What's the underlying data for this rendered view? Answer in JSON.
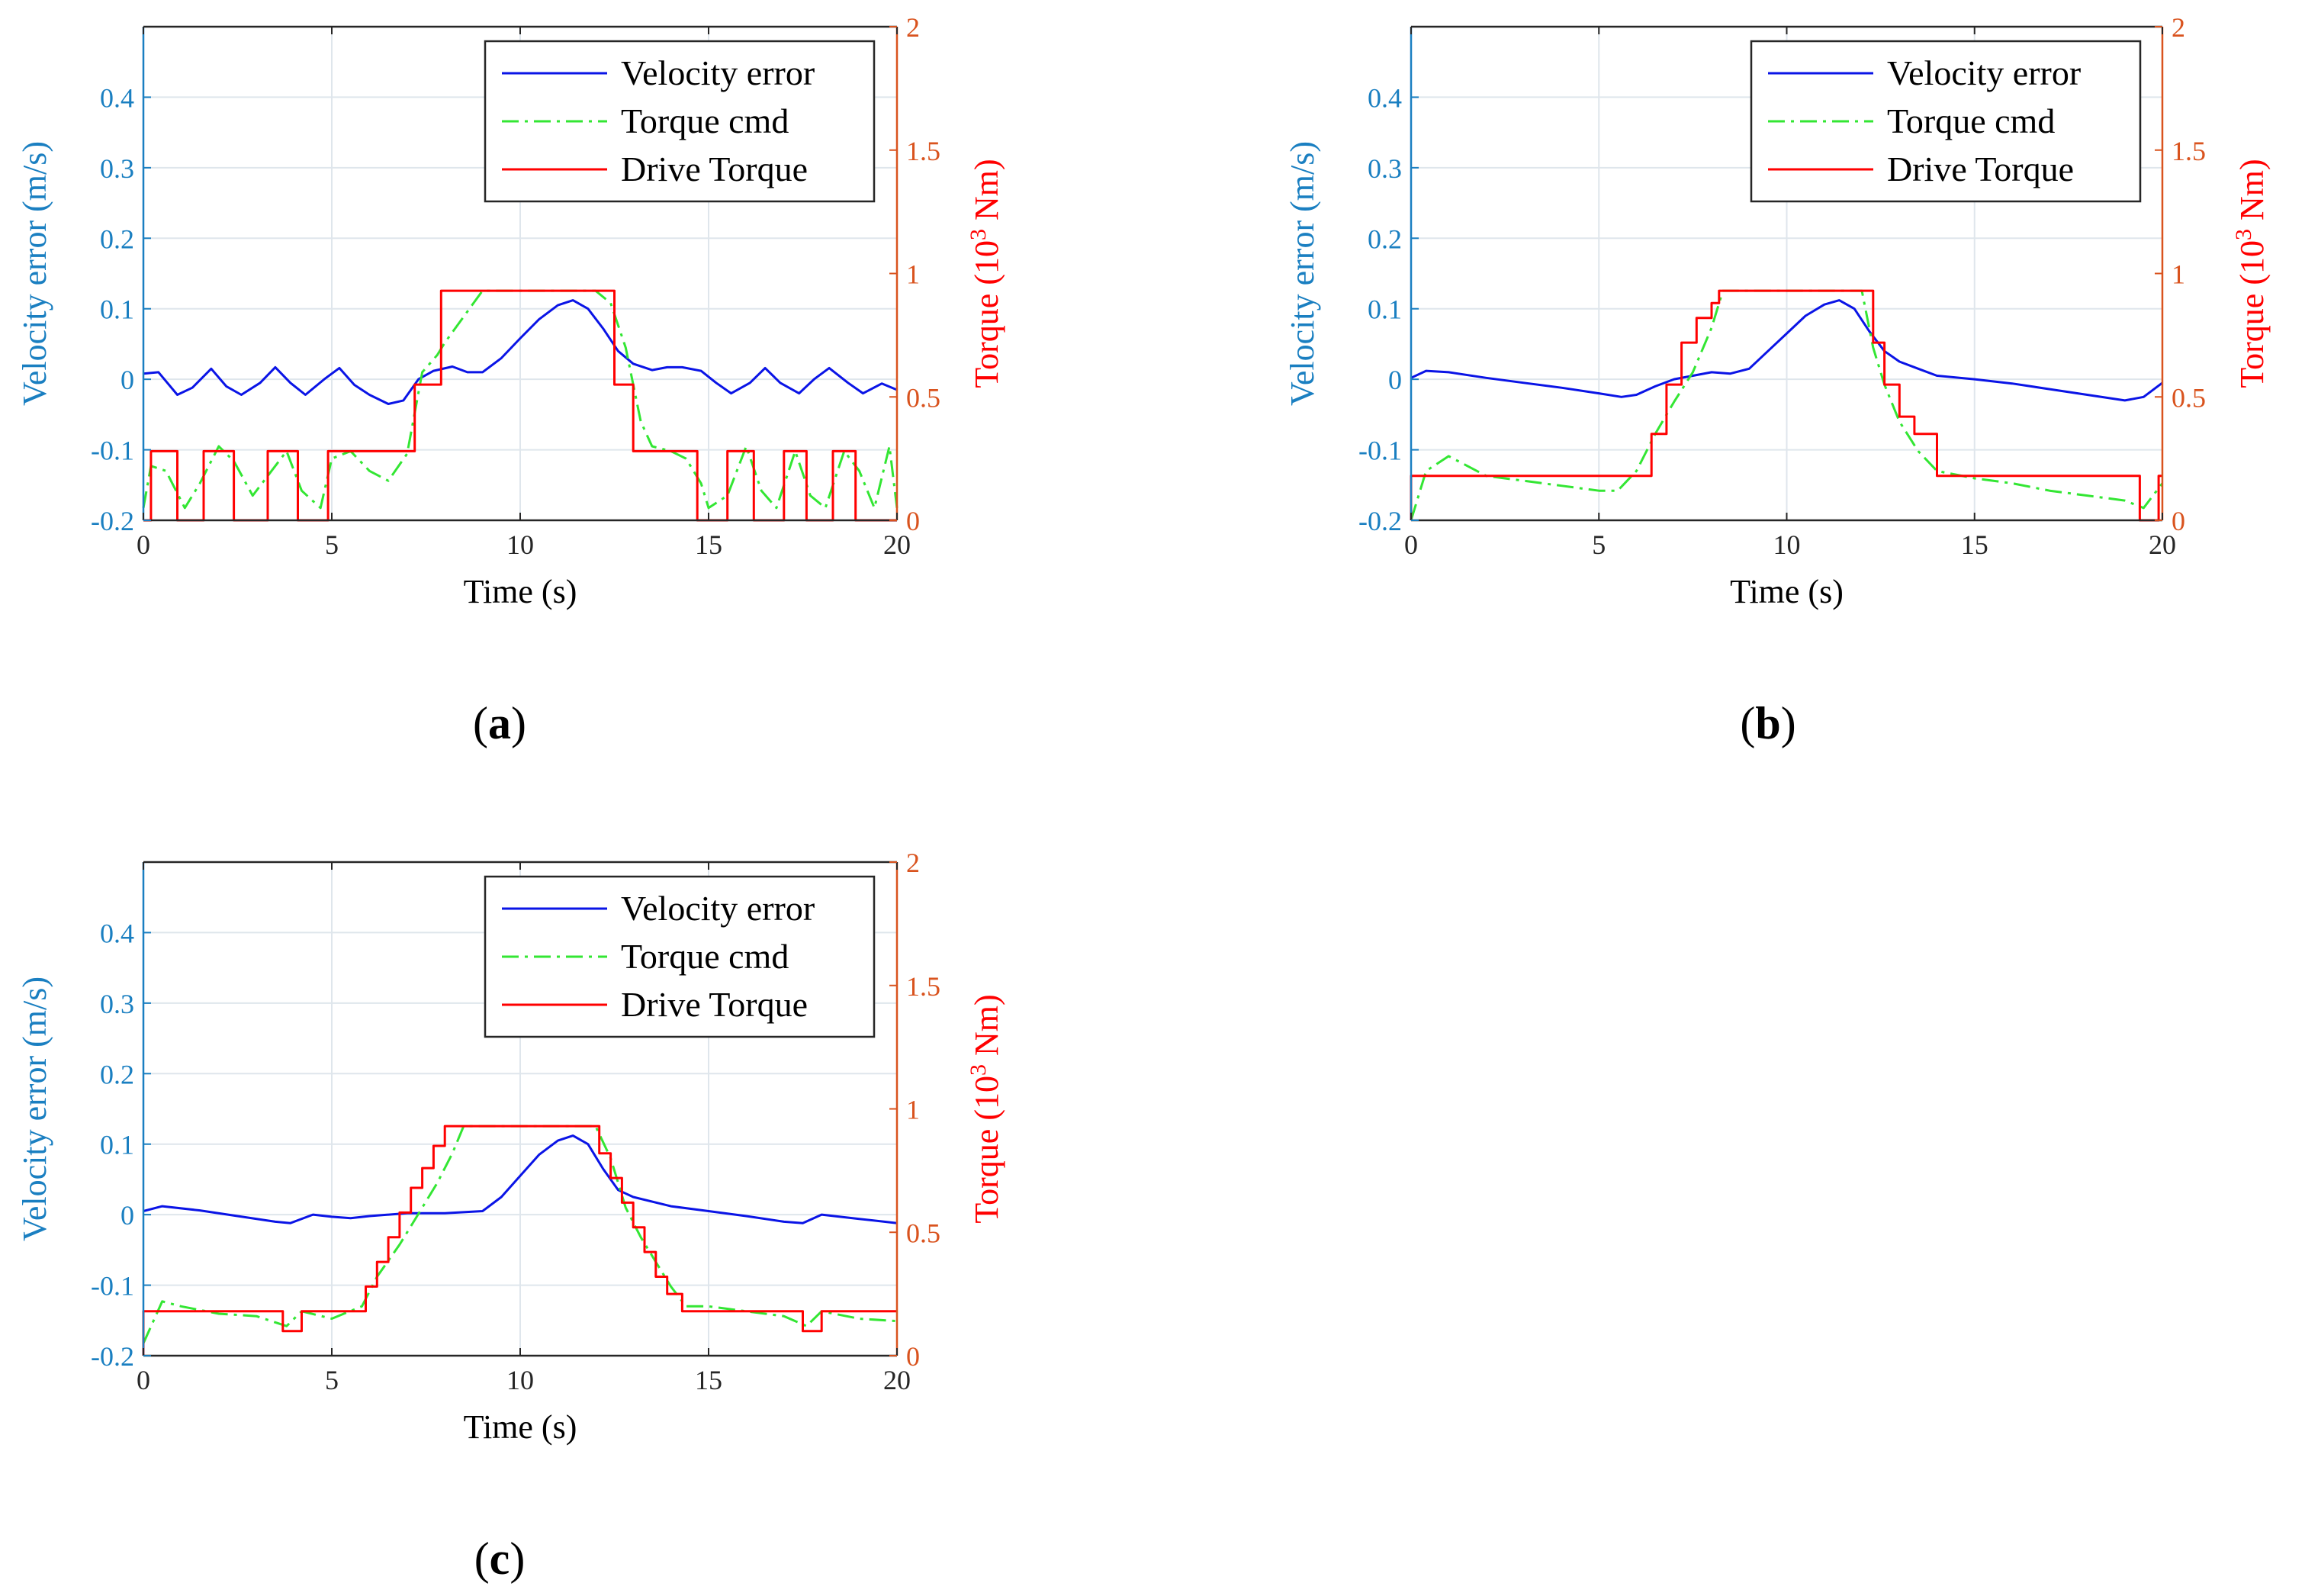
{
  "colors": {
    "left_axis": "#1a7fc1",
    "right_axis": "#d9531e",
    "velocity": "#0a14e6",
    "torque_cmd": "#33e633",
    "drive_torque": "#ff0000",
    "grid": "#dfe6ec"
  },
  "chart_data": [
    {
      "type": "line",
      "caption": "(a)",
      "caption_letter": "a",
      "xlabel": "Time (s)",
      "ylabel_left": "Velocity error (m/s)",
      "ylabel_right_prefix": "Torque (10",
      "ylabel_right_sup": "3",
      "ylabel_right_suffix": " Nm)",
      "xlim": [
        0,
        20
      ],
      "ylim_left": [
        -0.2,
        0.5
      ],
      "ylim_right": [
        0,
        2
      ],
      "x_ticks": [
        "0",
        "5",
        "10",
        "15",
        "20"
      ],
      "y_left_ticks": [
        "-0.2",
        "-0.1",
        "0",
        "0.1",
        "0.2",
        "0.3",
        "0.4"
      ],
      "y_right_ticks": [
        "0",
        "0.5",
        "1",
        "1.5",
        "2"
      ],
      "legend": [
        "Velocity error",
        "Torque cmd",
        "Drive Torque"
      ],
      "series": [
        {
          "name": "Velocity error",
          "x": [
            0,
            0.4,
            0.9,
            1.3,
            1.8,
            2.2,
            2.6,
            3.1,
            3.5,
            3.9,
            4.3,
            4.8,
            5.2,
            5.6,
            6.0,
            6.5,
            6.9,
            7.3,
            7.7,
            8.2,
            8.6,
            9.0,
            9.5,
            10.0,
            10.5,
            11.0,
            11.4,
            11.8,
            12.2,
            12.6,
            13.0,
            13.5,
            13.9,
            14.3,
            14.8,
            15.2,
            15.6,
            16.1,
            16.5,
            16.9,
            17.4,
            17.8,
            18.2,
            18.7,
            19.1,
            19.6,
            20
          ],
          "values": [
            0.008,
            0.01,
            -0.022,
            -0.012,
            0.015,
            -0.01,
            -0.022,
            -0.005,
            0.017,
            -0.005,
            -0.022,
            0.0,
            0.016,
            -0.008,
            -0.022,
            -0.035,
            -0.03,
            0.0,
            0.012,
            0.018,
            0.01,
            0.01,
            0.03,
            0.058,
            0.085,
            0.105,
            0.112,
            0.1,
            0.072,
            0.04,
            0.022,
            0.013,
            0.017,
            0.017,
            0.012,
            -0.005,
            -0.02,
            -0.005,
            0.016,
            -0.005,
            -0.02,
            0.0,
            0.016,
            -0.005,
            -0.02,
            -0.006,
            -0.015
          ]
        },
        {
          "name": "Torque cmd",
          "x": [
            0,
            0.2,
            0.6,
            1.1,
            1.5,
            2.0,
            2.4,
            2.9,
            3.3,
            3.8,
            4.2,
            4.7,
            5.0,
            5.5,
            6.0,
            6.5,
            7.0,
            7.4,
            7.8,
            8.0,
            9.0,
            10.0,
            11.0,
            12.0,
            12.4,
            12.8,
            13.2,
            13.5,
            14.0,
            14.4,
            14.8,
            15.0,
            15.5,
            16.0,
            16.4,
            16.8,
            17.3,
            17.7,
            18.1,
            18.6,
            19.0,
            19.4,
            19.8,
            20
          ],
          "values": [
            0.05,
            0.22,
            0.2,
            0.05,
            0.15,
            0.3,
            0.24,
            0.1,
            0.18,
            0.28,
            0.12,
            0.05,
            0.25,
            0.28,
            0.2,
            0.16,
            0.27,
            0.6,
            0.67,
            0.72,
            0.93,
            0.93,
            0.93,
            0.93,
            0.88,
            0.7,
            0.4,
            0.3,
            0.28,
            0.25,
            0.15,
            0.05,
            0.1,
            0.3,
            0.12,
            0.05,
            0.28,
            0.1,
            0.05,
            0.28,
            0.2,
            0.05,
            0.3,
            0.05
          ]
        },
        {
          "name": "Drive Torque",
          "x": [
            0,
            0.2,
            0.2,
            0.9,
            0.9,
            1.6,
            1.6,
            2.4,
            2.4,
            3.3,
            3.3,
            4.1,
            4.1,
            4.9,
            4.9,
            7.2,
            7.2,
            7.9,
            7.9,
            12.5,
            12.5,
            13.0,
            13.0,
            14.7,
            14.7,
            15.5,
            15.5,
            16.2,
            16.2,
            17.0,
            17.0,
            17.6,
            17.6,
            18.3,
            18.3,
            18.9,
            18.9,
            20.0
          ],
          "values": [
            0.0,
            0.0,
            0.28,
            0.28,
            0.0,
            0.0,
            0.28,
            0.28,
            0.0,
            0.0,
            0.28,
            0.28,
            0.0,
            0.0,
            0.28,
            0.28,
            0.55,
            0.55,
            0.93,
            0.93,
            0.55,
            0.55,
            0.28,
            0.28,
            0.0,
            0.0,
            0.28,
            0.28,
            0.0,
            0.0,
            0.28,
            0.28,
            0.0,
            0.0,
            0.28,
            0.28,
            0.0,
            0.0
          ]
        }
      ]
    },
    {
      "type": "line",
      "caption": "(b)",
      "caption_letter": "b",
      "xlabel": "Time (s)",
      "ylabel_left": "Velocity error (m/s)",
      "ylabel_right_prefix": "Torque (10",
      "ylabel_right_sup": "3",
      "ylabel_right_suffix": " Nm)",
      "xlim": [
        0,
        20
      ],
      "ylim_left": [
        -0.2,
        0.5
      ],
      "ylim_right": [
        0,
        2
      ],
      "x_ticks": [
        "0",
        "5",
        "10",
        "15",
        "20"
      ],
      "y_left_ticks": [
        "-0.2",
        "-0.1",
        "0",
        "0.1",
        "0.2",
        "0.3",
        "0.4"
      ],
      "y_right_ticks": [
        "0",
        "0.5",
        "1",
        "1.5",
        "2"
      ],
      "legend": [
        "Velocity error",
        "Torque cmd",
        "Drive Torque"
      ],
      "series": [
        {
          "name": "Velocity error",
          "x": [
            0,
            0.4,
            1.0,
            2.0,
            3.0,
            4.0,
            5.0,
            5.6,
            6.0,
            6.5,
            7.0,
            7.5,
            8.0,
            8.5,
            9.0,
            9.5,
            10.0,
            10.5,
            11.0,
            11.4,
            11.8,
            12.2,
            12.6,
            13.0,
            13.5,
            14.0,
            15.0,
            16.0,
            17.0,
            18.0,
            19.0,
            19.5,
            20
          ],
          "values": [
            0.002,
            0.012,
            0.01,
            0.002,
            -0.005,
            -0.012,
            -0.02,
            -0.025,
            -0.022,
            -0.01,
            0.0,
            0.005,
            0.01,
            0.008,
            0.015,
            0.04,
            0.065,
            0.09,
            0.106,
            0.112,
            0.1,
            0.068,
            0.04,
            0.025,
            0.015,
            0.005,
            0.0,
            -0.006,
            -0.014,
            -0.022,
            -0.03,
            -0.025,
            -0.005
          ]
        },
        {
          "name": "Torque cmd",
          "x": [
            0,
            0.4,
            1.0,
            2.0,
            3.0,
            4.0,
            5.0,
            5.5,
            6.0,
            6.5,
            7.0,
            7.5,
            8.0,
            8.3,
            9.0,
            10.0,
            11.0,
            12.0,
            12.3,
            12.6,
            13.0,
            13.5,
            14.0,
            15.0,
            16.0,
            17.0,
            18.0,
            19.0,
            19.5,
            20
          ],
          "values": [
            0.0,
            0.2,
            0.26,
            0.18,
            0.16,
            0.14,
            0.12,
            0.12,
            0.2,
            0.35,
            0.48,
            0.6,
            0.78,
            0.93,
            0.93,
            0.93,
            0.93,
            0.93,
            0.7,
            0.55,
            0.4,
            0.28,
            0.2,
            0.17,
            0.15,
            0.12,
            0.1,
            0.08,
            0.05,
            0.15
          ]
        },
        {
          "name": "Drive Torque",
          "x": [
            0,
            0.0,
            6.4,
            6.4,
            6.8,
            6.8,
            7.2,
            7.2,
            7.6,
            7.6,
            8.0,
            8.0,
            8.2,
            8.2,
            12.3,
            12.3,
            12.6,
            12.6,
            13.0,
            13.0,
            13.4,
            13.4,
            14.0,
            14.0,
            19.4,
            19.4,
            19.9,
            19.9,
            20.0
          ],
          "values": [
            0.0,
            0.18,
            0.18,
            0.35,
            0.35,
            0.55,
            0.55,
            0.72,
            0.72,
            0.82,
            0.82,
            0.88,
            0.88,
            0.93,
            0.93,
            0.72,
            0.72,
            0.55,
            0.55,
            0.42,
            0.42,
            0.35,
            0.35,
            0.18,
            0.18,
            0.0,
            0.0,
            0.18,
            0.18
          ]
        }
      ]
    },
    {
      "type": "line",
      "caption": "(c)",
      "caption_letter": "c",
      "xlabel": "Time (s)",
      "ylabel_left": "Velocity error (m/s)",
      "ylabel_right_prefix": "Torque (10",
      "ylabel_right_sup": "3",
      "ylabel_right_suffix": " Nm)",
      "xlim": [
        0,
        20
      ],
      "ylim_left": [
        -0.2,
        0.5
      ],
      "ylim_right": [
        0,
        2
      ],
      "x_ticks": [
        "0",
        "5",
        "10",
        "15",
        "20"
      ],
      "y_left_ticks": [
        "-0.2",
        "-0.1",
        "0",
        "0.1",
        "0.2",
        "0.3",
        "0.4"
      ],
      "y_right_ticks": [
        "0",
        "0.5",
        "1",
        "1.5",
        "2"
      ],
      "legend": [
        "Velocity error",
        "Torque cmd",
        "Drive Torque"
      ],
      "series": [
        {
          "name": "Velocity error",
          "x": [
            0,
            0.5,
            1.5,
            2.5,
            3.5,
            3.9,
            4.5,
            5.0,
            5.5,
            6.0,
            7.0,
            8.0,
            9.0,
            9.5,
            10.0,
            10.5,
            11.0,
            11.4,
            11.8,
            12.2,
            12.6,
            13.0,
            14.0,
            15.0,
            16.0,
            17.0,
            17.5,
            18.0,
            19.0,
            20
          ],
          "values": [
            0.005,
            0.012,
            0.006,
            -0.002,
            -0.01,
            -0.012,
            0.0,
            -0.003,
            -0.005,
            -0.002,
            0.002,
            0.002,
            0.005,
            0.025,
            0.055,
            0.085,
            0.105,
            0.112,
            0.1,
            0.065,
            0.035,
            0.025,
            0.012,
            0.005,
            -0.002,
            -0.01,
            -0.012,
            0.0,
            -0.006,
            -0.012
          ]
        },
        {
          "name": "Torque cmd",
          "x": [
            0,
            0.5,
            1.0,
            2.0,
            3.0,
            3.8,
            4.2,
            5.0,
            5.8,
            6.2,
            6.8,
            7.2,
            7.8,
            8.2,
            8.5,
            9.0,
            10.0,
            11.0,
            12.0,
            12.4,
            12.8,
            13.2,
            13.6,
            14.0,
            14.4,
            15.0,
            16.0,
            17.0,
            17.6,
            18.0,
            19.0,
            20
          ],
          "values": [
            0.05,
            0.22,
            0.2,
            0.17,
            0.16,
            0.12,
            0.18,
            0.15,
            0.2,
            0.32,
            0.45,
            0.55,
            0.7,
            0.82,
            0.93,
            0.93,
            0.93,
            0.93,
            0.93,
            0.8,
            0.6,
            0.48,
            0.38,
            0.28,
            0.2,
            0.2,
            0.18,
            0.16,
            0.12,
            0.18,
            0.15,
            0.14
          ]
        },
        {
          "name": "Drive Torque",
          "x": [
            0,
            0.0,
            3.7,
            3.7,
            4.2,
            4.2,
            5.9,
            5.9,
            6.2,
            6.2,
            6.5,
            6.5,
            6.8,
            6.8,
            7.1,
            7.1,
            7.4,
            7.4,
            7.7,
            7.7,
            8.0,
            8.0,
            8.4,
            8.4,
            12.1,
            12.1,
            12.4,
            12.4,
            12.7,
            12.7,
            13.0,
            13.0,
            13.3,
            13.3,
            13.6,
            13.6,
            13.9,
            13.9,
            14.3,
            14.3,
            17.5,
            17.5,
            18.0,
            18.0,
            20.0
          ],
          "values": [
            0.0,
            0.18,
            0.18,
            0.1,
            0.1,
            0.18,
            0.18,
            0.28,
            0.28,
            0.38,
            0.38,
            0.48,
            0.48,
            0.58,
            0.58,
            0.68,
            0.68,
            0.76,
            0.76,
            0.85,
            0.85,
            0.93,
            0.93,
            0.93,
            0.93,
            0.82,
            0.82,
            0.72,
            0.72,
            0.62,
            0.62,
            0.52,
            0.52,
            0.42,
            0.42,
            0.32,
            0.32,
            0.25,
            0.25,
            0.18,
            0.18,
            0.1,
            0.1,
            0.18,
            0.18
          ]
        }
      ]
    }
  ]
}
